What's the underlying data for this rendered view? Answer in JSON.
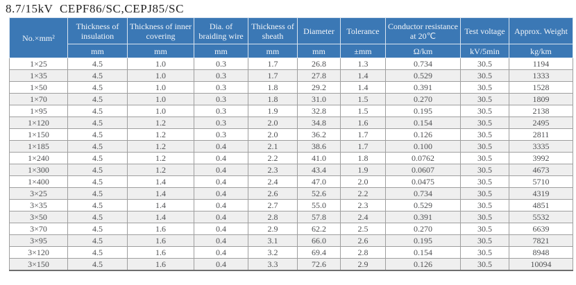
{
  "title": "8.7/15kV  CEPF86/SC,CEPJ85/SC",
  "colors": {
    "header-bg": "#3b78b5",
    "header-text": "#f2f5f9",
    "zebra": "#efefef",
    "grid-line": "#9e9e9e",
    "data-text": "#4f5052",
    "outer-border": "#6e6e6e"
  },
  "table": {
    "columns": [
      {
        "key": "size",
        "label": "No.×mm²",
        "unit": ""
      },
      {
        "key": "insulation",
        "label": "Thickness of insulation",
        "unit": "mm"
      },
      {
        "key": "inner-covering",
        "label": "Thickness of inner covering",
        "unit": "mm"
      },
      {
        "key": "braiding-wire",
        "label": "Dia. of braiding wire",
        "unit": "mm"
      },
      {
        "key": "sheath",
        "label": "Thickness of sheath",
        "unit": "mm"
      },
      {
        "key": "diameter",
        "label": "Diameter",
        "unit": "mm"
      },
      {
        "key": "tolerance",
        "label": "Tolerance",
        "unit": "±mm"
      },
      {
        "key": "resistance",
        "label": "Conductor resistance at 20℃",
        "unit": "Ω/km"
      },
      {
        "key": "test-voltage",
        "label": "Test voltage",
        "unit": "kV/5min"
      },
      {
        "key": "weight",
        "label": "Approx. Weight",
        "unit": "kg/km"
      }
    ],
    "rows": [
      [
        "1×25",
        "4.5",
        "1.0",
        "0.3",
        "1.7",
        "26.8",
        "1.3",
        "0.734",
        "30.5",
        "1194"
      ],
      [
        "1×35",
        "4.5",
        "1.0",
        "0.3",
        "1.7",
        "27.8",
        "1.4",
        "0.529",
        "30.5",
        "1333"
      ],
      [
        "1×50",
        "4.5",
        "1.0",
        "0.3",
        "1.8",
        "29.2",
        "1.4",
        "0.391",
        "30.5",
        "1528"
      ],
      [
        "1×70",
        "4.5",
        "1.0",
        "0.3",
        "1.8",
        "31.0",
        "1.5",
        "0.270",
        "30.5",
        "1809"
      ],
      [
        "1×95",
        "4.5",
        "1.0",
        "0.3",
        "1.9",
        "32.8",
        "1.5",
        "0.195",
        "30.5",
        "2138"
      ],
      [
        "1×120",
        "4.5",
        "1.2",
        "0.3",
        "2.0",
        "34.8",
        "1.6",
        "0.154",
        "30.5",
        "2495"
      ],
      [
        "1×150",
        "4.5",
        "1.2",
        "0.3",
        "2.0",
        "36.2",
        "1.7",
        "0.126",
        "30.5",
        "2811"
      ],
      [
        "1×185",
        "4.5",
        "1.2",
        "0.4",
        "2.1",
        "38.6",
        "1.7",
        "0.100",
        "30.5",
        "3335"
      ],
      [
        "1×240",
        "4.5",
        "1.2",
        "0.4",
        "2.2",
        "41.0",
        "1.8",
        "0.0762",
        "30.5",
        "3992"
      ],
      [
        "1×300",
        "4.5",
        "1.2",
        "0.4",
        "2.3",
        "43.4",
        "1.9",
        "0.0607",
        "30.5",
        "4673"
      ],
      [
        "1×400",
        "4.5",
        "1.4",
        "0.4",
        "2.4",
        "47.0",
        "2.0",
        "0.0475",
        "30.5",
        "5710"
      ],
      [
        "3×25",
        "4.5",
        "1.4",
        "0.4",
        "2.6",
        "52.6",
        "2.2",
        "0.734",
        "30.5",
        "4319"
      ],
      [
        "3×35",
        "4.5",
        "1.4",
        "0.4",
        "2.7",
        "55.0",
        "2.3",
        "0.529",
        "30.5",
        "4851"
      ],
      [
        "3×50",
        "4.5",
        "1.4",
        "0.4",
        "2.8",
        "57.8",
        "2.4",
        "0.391",
        "30.5",
        "5532"
      ],
      [
        "3×70",
        "4.5",
        "1.6",
        "0.4",
        "2.9",
        "62.2",
        "2.5",
        "0.270",
        "30.5",
        "6639"
      ],
      [
        "3×95",
        "4.5",
        "1.6",
        "0.4",
        "3.1",
        "66.0",
        "2.6",
        "0.195",
        "30.5",
        "7821"
      ],
      [
        "3×120",
        "4.5",
        "1.6",
        "0.4",
        "3.2",
        "69.4",
        "2.8",
        "0.154",
        "30.5",
        "8948"
      ],
      [
        "3×150",
        "4.5",
        "1.6",
        "0.4",
        "3.3",
        "72.6",
        "2.9",
        "0.126",
        "30.5",
        "10094"
      ]
    ]
  }
}
